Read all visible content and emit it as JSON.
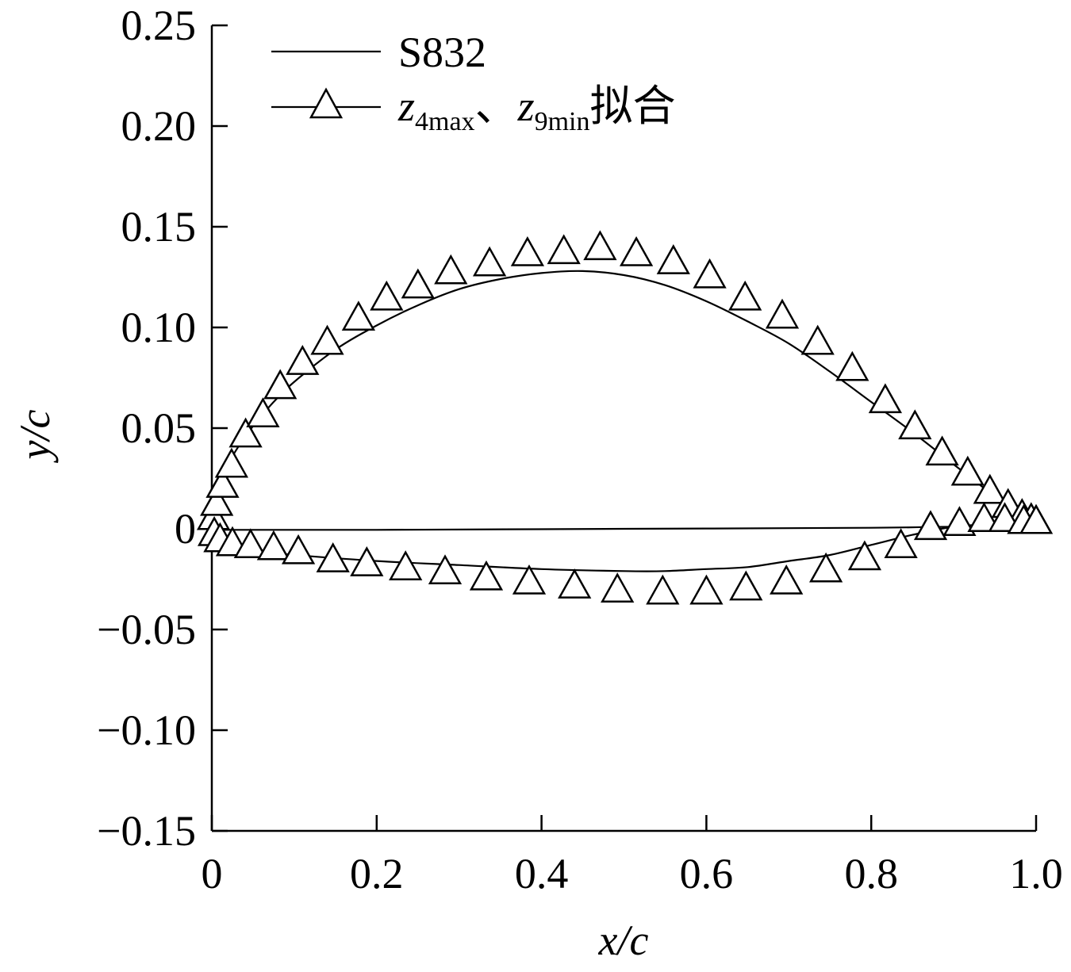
{
  "chart_data": {
    "type": "line",
    "xlabel": "x/c",
    "ylabel": "y/c",
    "xlim": [
      0,
      1.0
    ],
    "ylim": [
      -0.15,
      0.25
    ],
    "xticks": [
      "0",
      "0.2",
      "0.4",
      "0.6",
      "0.8",
      "1.0"
    ],
    "yticks": [
      "−0.15",
      "−0.10",
      "−0.05",
      "0",
      "0.05",
      "0.10",
      "0.15",
      "0.20",
      "0.25"
    ],
    "legend_position": "top-left",
    "legend": {
      "s832": "S832",
      "fit_var1": "z",
      "fit_sub1": "4max",
      "fit_sep": "、",
      "fit_var2": "z",
      "fit_sub2": "9min",
      "fit_suffix": "拟合"
    },
    "series": [
      {
        "name": "S832",
        "style": "line",
        "upper": [
          [
            0,
            0
          ],
          [
            0.005,
            0.012
          ],
          [
            0.01,
            0.022
          ],
          [
            0.025,
            0.036
          ],
          [
            0.05,
            0.051
          ],
          [
            0.075,
            0.063
          ],
          [
            0.1,
            0.073
          ],
          [
            0.15,
            0.089
          ],
          [
            0.2,
            0.101
          ],
          [
            0.25,
            0.111
          ],
          [
            0.3,
            0.119
          ],
          [
            0.35,
            0.124
          ],
          [
            0.4,
            0.127
          ],
          [
            0.45,
            0.128
          ],
          [
            0.5,
            0.126
          ],
          [
            0.55,
            0.121
          ],
          [
            0.6,
            0.113
          ],
          [
            0.65,
            0.103
          ],
          [
            0.7,
            0.092
          ],
          [
            0.75,
            0.078
          ],
          [
            0.8,
            0.063
          ],
          [
            0.85,
            0.048
          ],
          [
            0.9,
            0.032
          ],
          [
            0.95,
            0.016
          ],
          [
            1.0,
            0.0
          ]
        ],
        "lower": [
          [
            0,
            0
          ],
          [
            0.01,
            -0.008
          ],
          [
            0.05,
            -0.011
          ],
          [
            0.1,
            -0.013
          ],
          [
            0.2,
            -0.016
          ],
          [
            0.3,
            -0.018
          ],
          [
            0.4,
            -0.02
          ],
          [
            0.5,
            -0.021
          ],
          [
            0.55,
            -0.021
          ],
          [
            0.6,
            -0.02
          ],
          [
            0.65,
            -0.019
          ],
          [
            0.7,
            -0.016
          ],
          [
            0.75,
            -0.013
          ],
          [
            0.8,
            -0.008
          ],
          [
            0.85,
            -0.003
          ],
          [
            0.9,
            0.001
          ],
          [
            0.95,
            0.002
          ],
          [
            1.0,
            0.0
          ]
        ],
        "camber": [
          [
            0,
            -0.0005
          ],
          [
            0.2,
            -0.0005
          ],
          [
            0.5,
            0.0
          ],
          [
            0.8,
            0.0005
          ],
          [
            0.9,
            0.001
          ],
          [
            1.0,
            0.0
          ]
        ]
      },
      {
        "name": "z4max、z9min拟合",
        "style": "triangle",
        "upper": [
          [
            0.002,
            0.005
          ],
          [
            0.006,
            0.012
          ],
          [
            0.013,
            0.021
          ],
          [
            0.024,
            0.031
          ],
          [
            0.041,
            0.046
          ],
          [
            0.062,
            0.056
          ],
          [
            0.083,
            0.07
          ],
          [
            0.11,
            0.082
          ],
          [
            0.14,
            0.092
          ],
          [
            0.178,
            0.104
          ],
          [
            0.212,
            0.114
          ],
          [
            0.25,
            0.12
          ],
          [
            0.29,
            0.127
          ],
          [
            0.337,
            0.131
          ],
          [
            0.383,
            0.136
          ],
          [
            0.427,
            0.137
          ],
          [
            0.471,
            0.139
          ],
          [
            0.515,
            0.136
          ],
          [
            0.56,
            0.132
          ],
          [
            0.604,
            0.125
          ],
          [
            0.647,
            0.114
          ],
          [
            0.692,
            0.105
          ],
          [
            0.735,
            0.092
          ],
          [
            0.777,
            0.079
          ],
          [
            0.817,
            0.063
          ],
          [
            0.853,
            0.05
          ],
          [
            0.886,
            0.037
          ],
          [
            0.917,
            0.027
          ],
          [
            0.944,
            0.018
          ],
          [
            0.966,
            0.011
          ],
          [
            0.983,
            0.006
          ],
          [
            0.994,
            0.004
          ],
          [
            1.0,
            0.003
          ]
        ],
        "lower": [
          [
            0.003,
            -0.003
          ],
          [
            0.01,
            -0.006
          ],
          [
            0.025,
            -0.008
          ],
          [
            0.047,
            -0.009
          ],
          [
            0.075,
            -0.01
          ],
          [
            0.105,
            -0.012
          ],
          [
            0.147,
            -0.016
          ],
          [
            0.188,
            -0.018
          ],
          [
            0.235,
            -0.02
          ],
          [
            0.283,
            -0.022
          ],
          [
            0.333,
            -0.025
          ],
          [
            0.385,
            -0.027
          ],
          [
            0.44,
            -0.029
          ],
          [
            0.492,
            -0.031
          ],
          [
            0.547,
            -0.032
          ],
          [
            0.6,
            -0.032
          ],
          [
            0.648,
            -0.03
          ],
          [
            0.697,
            -0.027
          ],
          [
            0.745,
            -0.021
          ],
          [
            0.792,
            -0.015
          ],
          [
            0.836,
            -0.009
          ],
          [
            0.872,
            0.0
          ],
          [
            0.907,
            0.002
          ],
          [
            0.937,
            0.004
          ],
          [
            0.962,
            0.004
          ],
          [
            0.985,
            0.003
          ],
          [
            1.0,
            0.003
          ]
        ]
      }
    ]
  }
}
